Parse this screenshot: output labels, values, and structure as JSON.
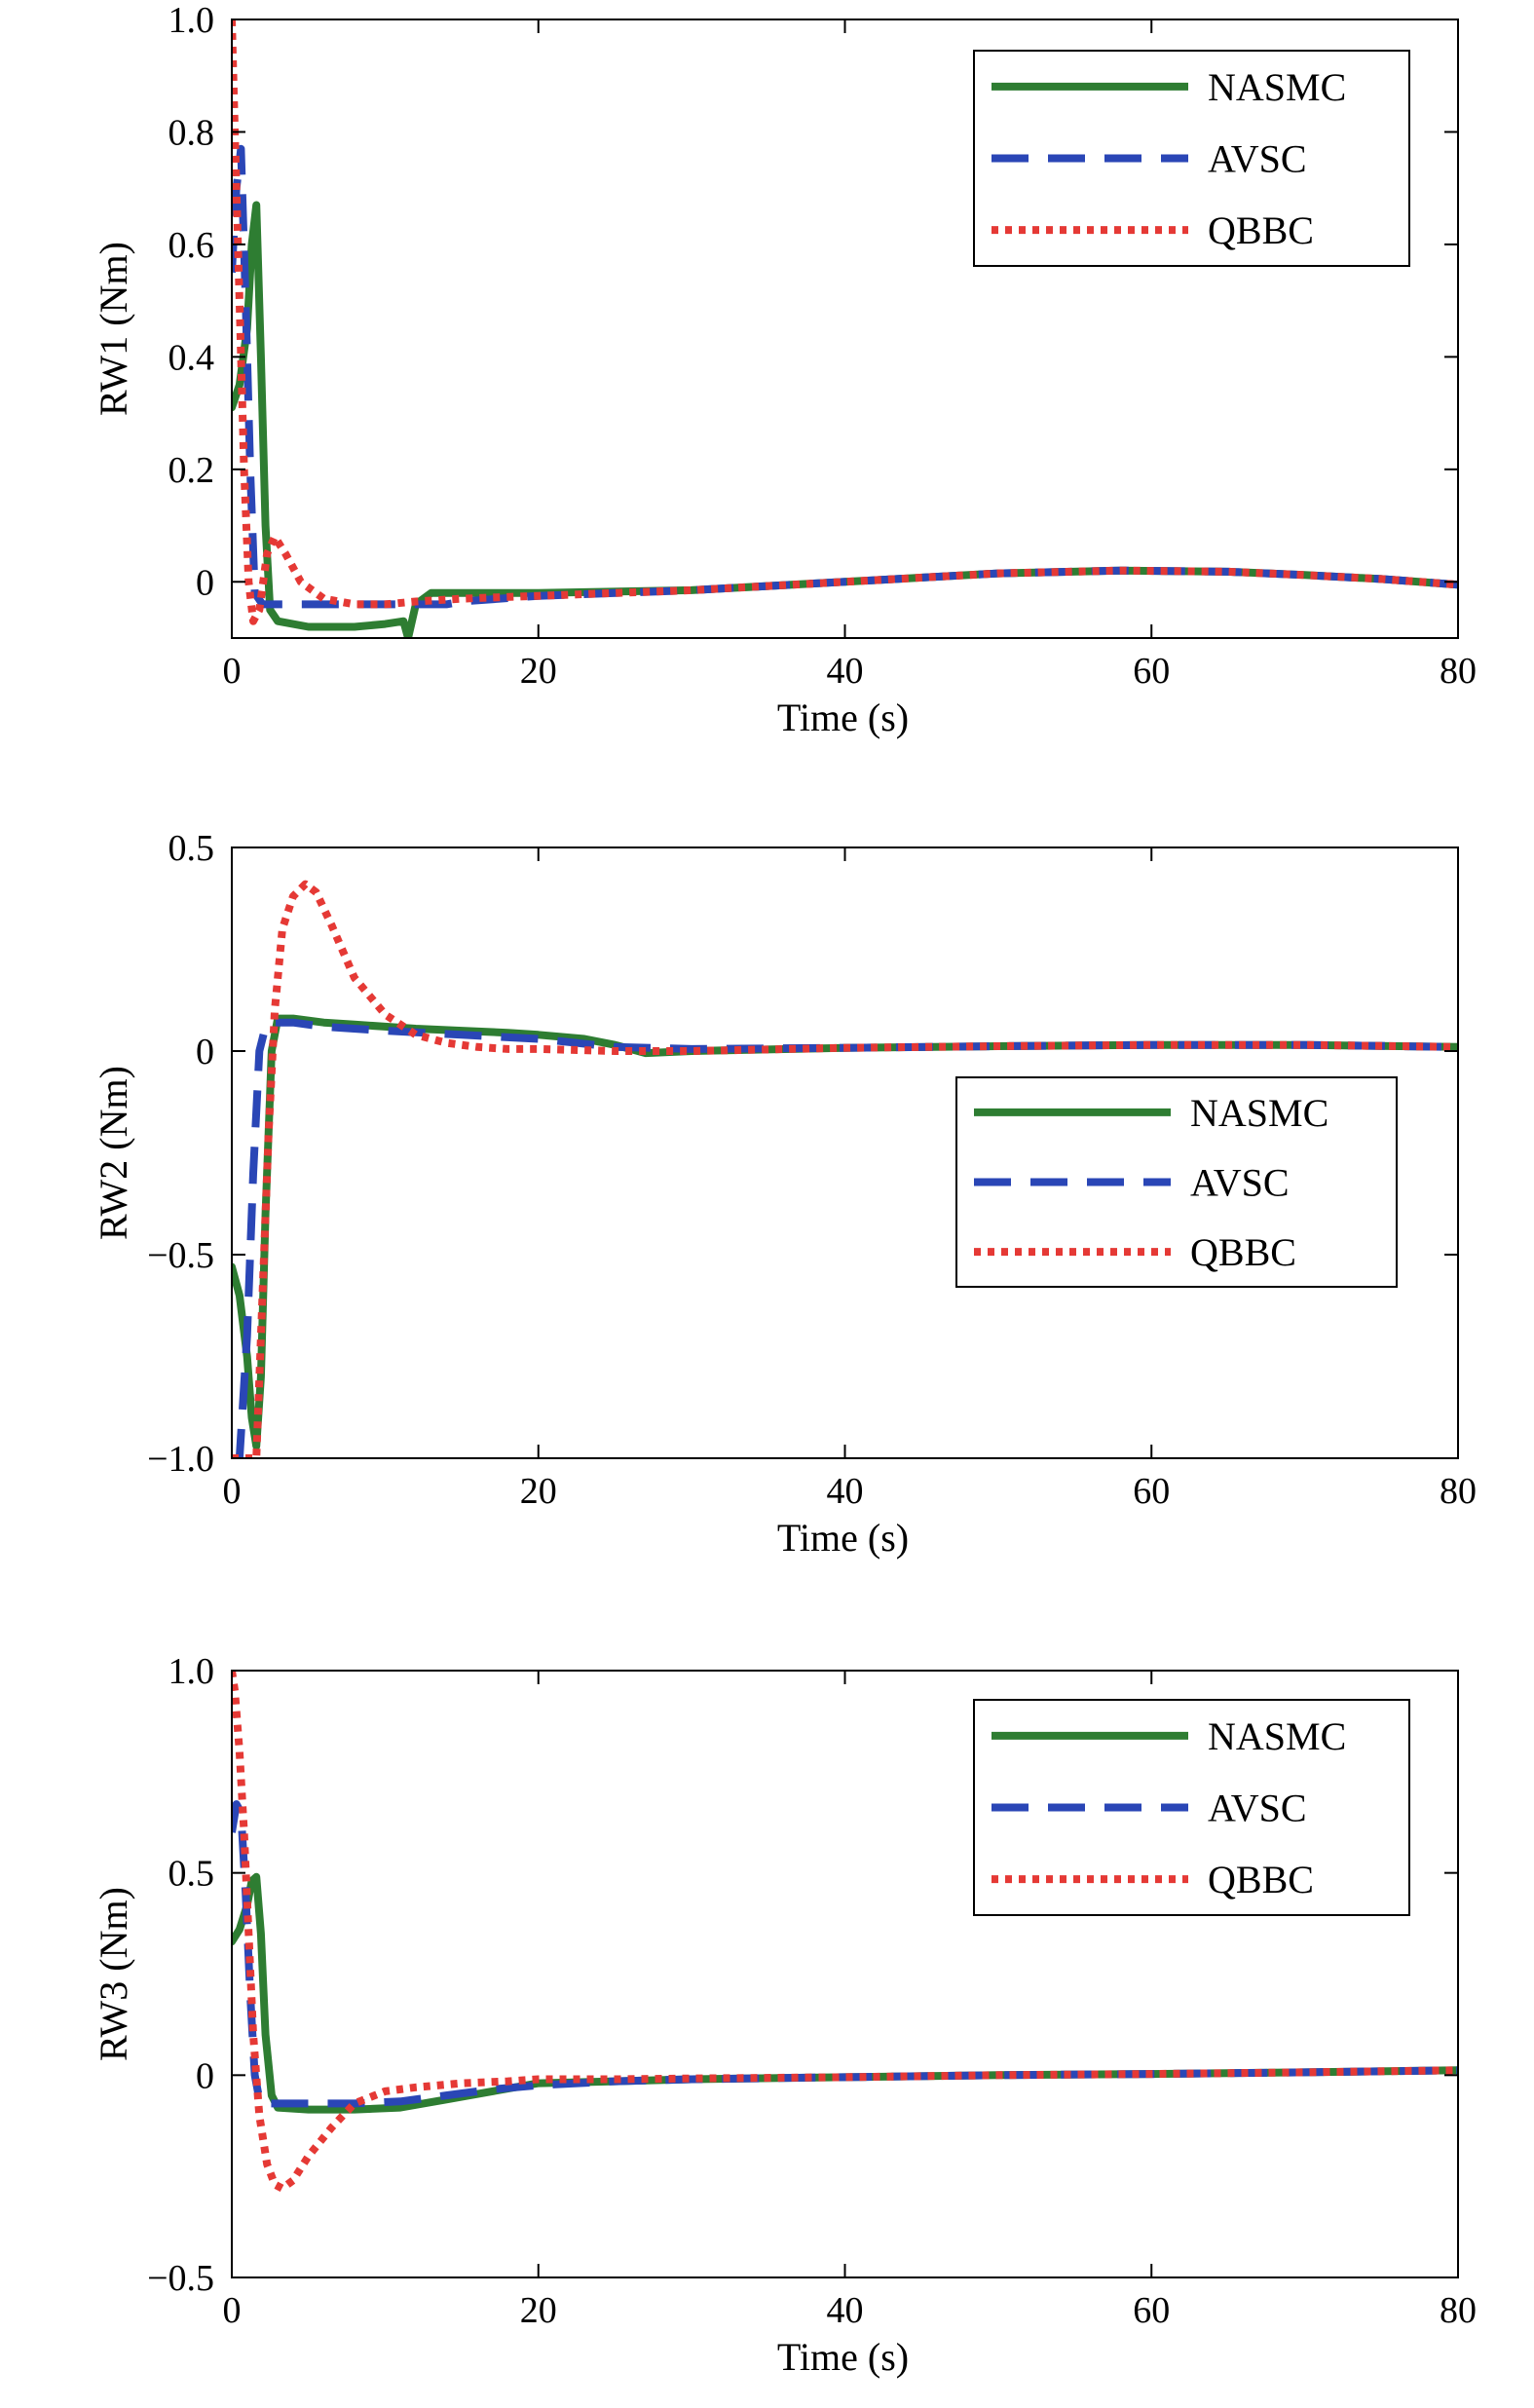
{
  "chart_data": [
    {
      "type": "line",
      "xlabel": "Time (s)",
      "ylabel": "RW1 (Nm)",
      "xlim": [
        0,
        80
      ],
      "ylim": [
        -0.1,
        1.0
      ],
      "xticks": [
        0,
        20,
        40,
        60,
        80
      ],
      "xtick_labels": [
        "0",
        "20",
        "40",
        "60",
        "80"
      ],
      "yticks": [
        0,
        0.2,
        0.4,
        0.6,
        0.8,
        1.0
      ],
      "ytick_labels": [
        "0",
        "0.2",
        "0.4",
        "0.6",
        "0.8",
        "1.0"
      ],
      "grid": false,
      "legend": "top-right",
      "series": [
        {
          "name": "NASMC",
          "color": "#2e7d32",
          "style": "solid",
          "x": [
            0,
            0.5,
            1.0,
            1.3,
            1.6,
            1.9,
            2.2,
            2.5,
            3,
            5,
            8,
            10,
            11.2,
            11.5,
            12,
            13,
            15,
            20,
            30,
            40,
            50,
            58,
            65,
            70,
            75,
            80
          ],
          "y": [
            0.31,
            0.35,
            0.45,
            0.6,
            0.67,
            0.4,
            0.1,
            -0.05,
            -0.07,
            -0.08,
            -0.08,
            -0.075,
            -0.07,
            -0.1,
            -0.04,
            -0.02,
            -0.02,
            -0.02,
            -0.015,
            0.0,
            0.015,
            0.02,
            0.018,
            0.012,
            0.005,
            -0.005
          ]
        },
        {
          "name": "AVSC",
          "color": "#2a46b6",
          "style": "dashed",
          "x": [
            0,
            0.3,
            0.6,
            0.9,
            1.2,
            1.5,
            2,
            3,
            5,
            8,
            10,
            12,
            14,
            15,
            20,
            30,
            40,
            50,
            58,
            65,
            70,
            75,
            80
          ],
          "y": [
            0.55,
            0.7,
            0.77,
            0.5,
            0.2,
            -0.02,
            -0.04,
            -0.04,
            -0.04,
            -0.04,
            -0.04,
            -0.04,
            -0.04,
            -0.035,
            -0.025,
            -0.015,
            0.0,
            0.015,
            0.02,
            0.018,
            0.012,
            0.005,
            -0.005
          ]
        },
        {
          "name": "QBBC",
          "color": "#e53935",
          "style": "dotted",
          "x": [
            0,
            0.2,
            0.5,
            0.8,
            1.1,
            1.4,
            1.8,
            2.3,
            2.8,
            3.5,
            4.5,
            6,
            8,
            10,
            12,
            15,
            20,
            30,
            40,
            50,
            58,
            65,
            70,
            75,
            80
          ],
          "y": [
            1.0,
            0.8,
            0.5,
            0.2,
            0.0,
            -0.07,
            -0.05,
            0.05,
            0.08,
            0.05,
            0.0,
            -0.03,
            -0.04,
            -0.04,
            -0.035,
            -0.03,
            -0.025,
            -0.015,
            0.0,
            0.015,
            0.02,
            0.018,
            0.012,
            0.005,
            -0.005
          ]
        }
      ]
    },
    {
      "type": "line",
      "xlabel": "Time (s)",
      "ylabel": "RW2 (Nm)",
      "xlim": [
        0,
        80
      ],
      "ylim": [
        -1.0,
        0.5
      ],
      "xticks": [
        0,
        20,
        40,
        60,
        80
      ],
      "xtick_labels": [
        "0",
        "20",
        "40",
        "60",
        "80"
      ],
      "yticks": [
        -1.0,
        -0.5,
        0,
        0.5
      ],
      "ytick_labels": [
        "−1.0",
        "−0.5",
        "0",
        "0.5"
      ],
      "grid": false,
      "legend": "middle-right",
      "series": [
        {
          "name": "NASMC",
          "color": "#2e7d32",
          "style": "solid",
          "x": [
            0,
            0.5,
            1.0,
            1.3,
            1.6,
            1.9,
            2.2,
            2.6,
            3.0,
            4,
            6,
            8,
            10,
            12,
            15,
            18,
            20,
            23,
            25,
            27,
            30,
            40,
            50,
            60,
            70,
            80
          ],
          "y": [
            -0.53,
            -0.6,
            -0.75,
            -0.9,
            -0.97,
            -0.8,
            -0.4,
            0.0,
            0.08,
            0.08,
            0.07,
            0.065,
            0.06,
            0.055,
            0.05,
            0.045,
            0.04,
            0.03,
            0.015,
            -0.005,
            0.0,
            0.008,
            0.012,
            0.015,
            0.015,
            0.01
          ]
        },
        {
          "name": "AVSC",
          "color": "#2a46b6",
          "style": "dashed",
          "x": [
            0,
            0.5,
            1.0,
            1.4,
            1.8,
            2.2,
            2.6,
            3.0,
            4,
            6,
            10,
            15,
            20,
            25,
            30,
            40,
            50,
            60,
            70,
            80
          ],
          "y": [
            -1.0,
            -1.0,
            -0.7,
            -0.3,
            0.0,
            0.06,
            0.07,
            0.07,
            0.07,
            0.06,
            0.05,
            0.04,
            0.03,
            0.01,
            0.005,
            0.008,
            0.012,
            0.015,
            0.015,
            0.01
          ]
        },
        {
          "name": "QBBC",
          "color": "#e53935",
          "style": "dotted",
          "x": [
            0,
            1.0,
            1.6,
            2.0,
            2.4,
            2.8,
            3.3,
            4.0,
            4.8,
            5.5,
            6.5,
            8,
            10,
            12,
            14,
            16,
            18,
            20,
            25,
            30,
            40,
            50,
            60,
            70,
            80
          ],
          "y": [
            -1.0,
            -1.0,
            -1.0,
            -0.6,
            -0.2,
            0.1,
            0.3,
            0.38,
            0.41,
            0.39,
            0.31,
            0.18,
            0.09,
            0.04,
            0.02,
            0.01,
            0.005,
            0.005,
            0.0,
            0.0,
            0.008,
            0.012,
            0.015,
            0.015,
            0.01
          ]
        }
      ]
    },
    {
      "type": "line",
      "xlabel": "Time (s)",
      "ylabel": "RW3 (Nm)",
      "xlim": [
        0,
        80
      ],
      "ylim": [
        -0.5,
        1.0
      ],
      "xticks": [
        0,
        20,
        40,
        60,
        80
      ],
      "xtick_labels": [
        "0",
        "20",
        "40",
        "60",
        "80"
      ],
      "yticks": [
        -0.5,
        0,
        0.5,
        1.0
      ],
      "ytick_labels": [
        "−0.5",
        "0",
        "0.5",
        "1.0"
      ],
      "grid": false,
      "legend": "top-right",
      "series": [
        {
          "name": "NASMC",
          "color": "#2e7d32",
          "style": "solid",
          "x": [
            0,
            0.5,
            1.0,
            1.3,
            1.6,
            1.9,
            2.2,
            2.6,
            3,
            5,
            8,
            11,
            14,
            17,
            20,
            25,
            30,
            40,
            50,
            60,
            70,
            80
          ],
          "y": [
            0.33,
            0.36,
            0.42,
            0.48,
            0.49,
            0.35,
            0.1,
            -0.05,
            -0.08,
            -0.085,
            -0.085,
            -0.08,
            -0.06,
            -0.04,
            -0.02,
            -0.015,
            -0.01,
            -0.005,
            0.0,
            0.003,
            0.007,
            0.012
          ]
        },
        {
          "name": "AVSC",
          "color": "#2a46b6",
          "style": "dashed",
          "x": [
            0,
            0.3,
            0.6,
            0.9,
            1.2,
            1.5,
            1.8,
            2.2,
            3,
            5,
            8,
            11,
            14,
            17,
            20,
            25,
            30,
            40,
            50,
            60,
            70,
            80
          ],
          "y": [
            0.6,
            0.67,
            0.65,
            0.45,
            0.2,
            0.0,
            -0.06,
            -0.07,
            -0.07,
            -0.07,
            -0.07,
            -0.065,
            -0.05,
            -0.035,
            -0.025,
            -0.015,
            -0.01,
            -0.005,
            0.0,
            0.003,
            0.007,
            0.012
          ]
        },
        {
          "name": "QBBC",
          "color": "#e53935",
          "style": "dotted",
          "x": [
            0,
            0.2,
            0.5,
            0.8,
            1.1,
            1.4,
            1.8,
            2.3,
            2.8,
            3.3,
            4,
            5,
            6.5,
            8,
            10,
            12,
            15,
            18,
            20,
            25,
            30,
            40,
            50,
            60,
            70,
            80
          ],
          "y": [
            1.0,
            0.95,
            0.8,
            0.6,
            0.35,
            0.1,
            -0.1,
            -0.22,
            -0.27,
            -0.28,
            -0.26,
            -0.2,
            -0.13,
            -0.07,
            -0.04,
            -0.03,
            -0.02,
            -0.015,
            -0.01,
            -0.01,
            -0.008,
            -0.005,
            0.0,
            0.003,
            0.007,
            0.012
          ]
        }
      ]
    }
  ]
}
